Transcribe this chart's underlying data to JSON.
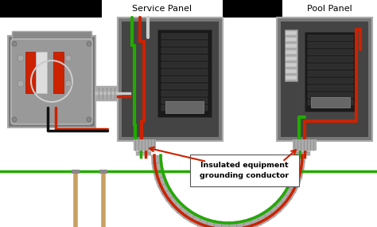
{
  "bg_color": "#ffffff",
  "black_bar": "#000000",
  "panel_outer": "#888888",
  "panel_inner": "#555555",
  "panel_dark": "#333333",
  "breaker_black": "#222222",
  "breaker_row": "#2a2a2a",
  "wire_red": "#cc2200",
  "wire_green": "#22aa00",
  "wire_white": "#cccccc",
  "wire_black": "#111111",
  "wire_tan": "#c8a060",
  "conduit_main": "#aaaaaa",
  "conduit_light": "#cccccc",
  "conduit_dark": "#888888",
  "label_box_bg": "#ffffff",
  "label_box_border": "#333333",
  "label_text": "Insulated equipment\ngrounding conductor",
  "service_panel_label": "Service Panel",
  "pool_panel_label": "Pool Panel",
  "arrow_color": "#cc2200",
  "meter_outer": "#777777",
  "meter_face": "#999999",
  "meter_red": "#cc2200",
  "meter_white": "#dddddd"
}
